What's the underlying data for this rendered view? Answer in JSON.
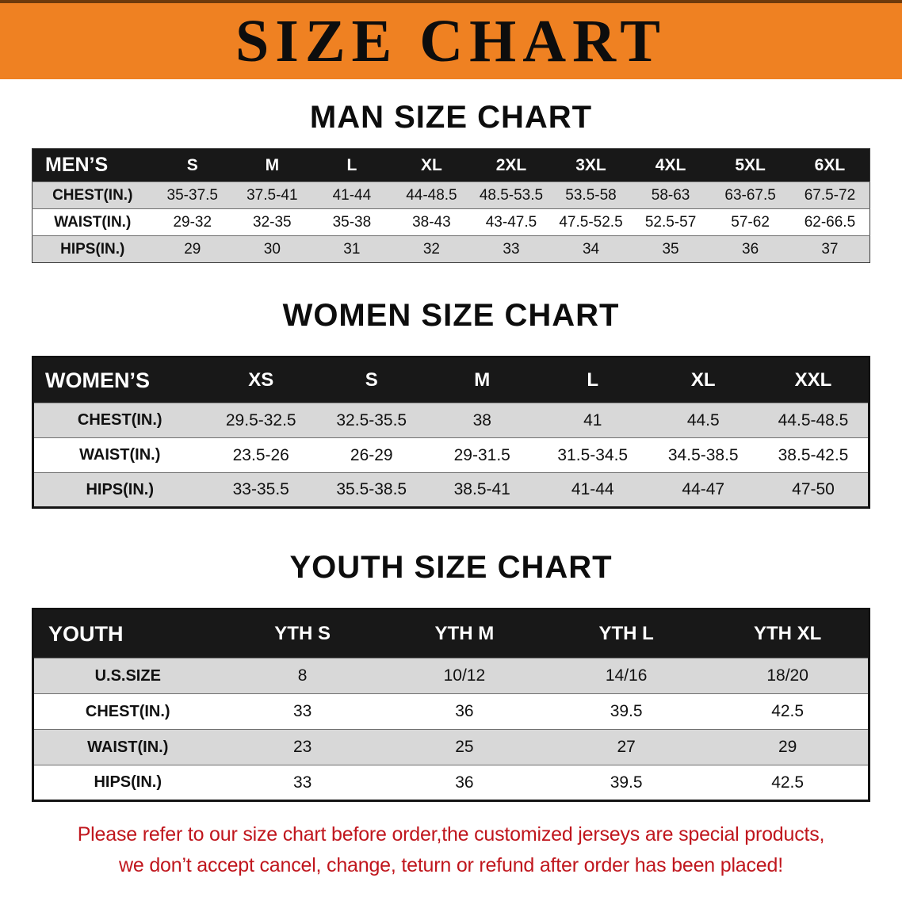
{
  "banner": {
    "title": "SIZE CHART"
  },
  "colors": {
    "banner_bg": "#ef8122",
    "table_header_bg": "#181818",
    "stripe_gray": "#d8d8d8",
    "notice_red": "#c0161d"
  },
  "sections": [
    {
      "id": "men",
      "heading": "MAN SIZE CHART",
      "table": {
        "header": [
          "MEN’S",
          "S",
          "M",
          "L",
          "XL",
          "2XL",
          "3XL",
          "4XL",
          "5XL",
          "6XL"
        ],
        "rows": [
          [
            "CHEST(IN.)",
            "35-37.5",
            "37.5-41",
            "41-44",
            "44-48.5",
            "48.5-53.5",
            "53.5-58",
            "58-63",
            "63-67.5",
            "67.5-72"
          ],
          [
            "WAIST(IN.)",
            "29-32",
            "32-35",
            "35-38",
            "38-43",
            "43-47.5",
            "47.5-52.5",
            "52.5-57",
            "57-62",
            "62-66.5"
          ],
          [
            "HIPS(IN.)",
            "29",
            "30",
            "31",
            "32",
            "33",
            "34",
            "35",
            "36",
            "37"
          ]
        ]
      }
    },
    {
      "id": "women",
      "heading": "WOMEN SIZE CHART",
      "table": {
        "header": [
          "WOMEN’S",
          "XS",
          "S",
          "M",
          "L",
          "XL",
          "XXL"
        ],
        "rows": [
          [
            "CHEST(IN.)",
            "29.5-32.5",
            "32.5-35.5",
            "38",
            "41",
            "44.5",
            "44.5-48.5"
          ],
          [
            "WAIST(IN.)",
            "23.5-26",
            "26-29",
            "29-31.5",
            "31.5-34.5",
            "34.5-38.5",
            "38.5-42.5"
          ],
          [
            "HIPS(IN.)",
            "33-35.5",
            "35.5-38.5",
            "38.5-41",
            "41-44",
            "44-47",
            "47-50"
          ]
        ]
      }
    },
    {
      "id": "youth",
      "heading": "YOUTH SIZE CHART",
      "table": {
        "header": [
          "YOUTH",
          "YTH S",
          "YTH M",
          "YTH L",
          "YTH XL"
        ],
        "rows": [
          [
            "U.S.SIZE",
            "8",
            "10/12",
            "14/16",
            "18/20"
          ],
          [
            "CHEST(IN.)",
            "33",
            "36",
            "39.5",
            "42.5"
          ],
          [
            "WAIST(IN.)",
            "23",
            "25",
            "27",
            "29"
          ],
          [
            "HIPS(IN.)",
            "33",
            "36",
            "39.5",
            "42.5"
          ]
        ]
      }
    }
  ],
  "footer": {
    "line1": "Please refer to our size chart before order,the customized jerseys are special products,",
    "line2": "we don’t accept cancel, change, teturn or refund after order has been placed!"
  }
}
